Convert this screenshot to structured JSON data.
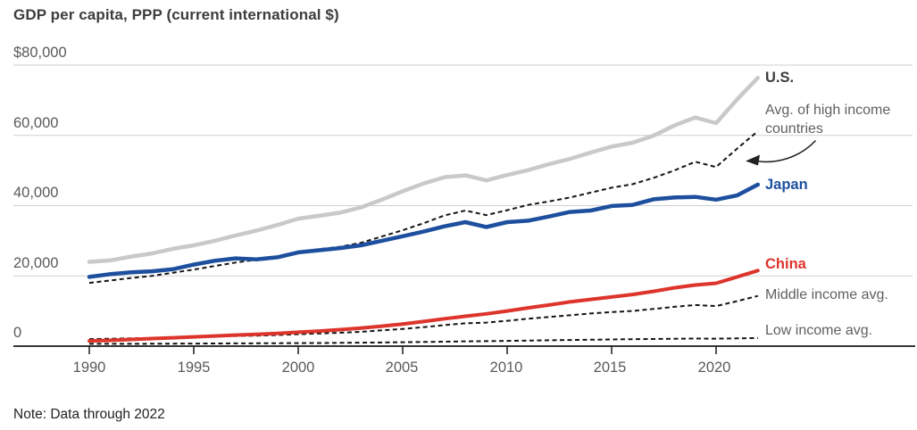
{
  "title": "GDP per capita, PPP (current international $)",
  "note": "Note: Data through 2022",
  "colors": {
    "us_line": "#c9c9c9",
    "japan_line": "#1d4f9e",
    "china_line": "#dd342c",
    "dashed_line": "#141414",
    "gridline": "#cfcfcf",
    "axis": "#1a1a1a",
    "tick_label": "#5a5a5a",
    "title_text": "#3d3d3d",
    "secondary_label": "#5f5f5f"
  },
  "y_axis": {
    "tick_labels": [
      "$80,000",
      "60,000",
      "40,000",
      "20,000",
      "0"
    ],
    "values": [
      80000,
      60000,
      40000,
      20000,
      0
    ]
  },
  "x_axis": {
    "tick_labels": [
      "1990",
      "1995",
      "2000",
      "2005",
      "2010",
      "2015",
      "2020"
    ],
    "values": [
      1990,
      1995,
      2000,
      2005,
      2010,
      2015,
      2020
    ]
  },
  "series_labels": {
    "us": "U.S.",
    "high_income": "Avg. of high income countries",
    "japan": "Japan",
    "china": "China",
    "middle_income": "Middle income avg.",
    "low_income": "Low income avg."
  },
  "chart_data": {
    "type": "line",
    "title": "GDP per capita, PPP (current international $)",
    "note": "Note: Data through 2022",
    "xlabel": "",
    "ylabel": "GDP per capita, PPP (current international $)",
    "xlim": [
      1990,
      2022
    ],
    "ylim": [
      0,
      80000
    ],
    "grid": "horizontal",
    "legend_position": "right-edge-direct-labels",
    "x": [
      1990,
      1991,
      1992,
      1993,
      1994,
      1995,
      1996,
      1997,
      1998,
      1999,
      2000,
      2001,
      2002,
      2003,
      2004,
      2005,
      2006,
      2007,
      2008,
      2009,
      2010,
      2011,
      2012,
      2013,
      2014,
      2015,
      2016,
      2017,
      2018,
      2019,
      2020,
      2021,
      2022
    ],
    "series": [
      {
        "name": "U.S.",
        "style": "solid",
        "color": "#c9c9c9",
        "stroke_width": 4.5,
        "values": [
          24000,
          24400,
          25500,
          26400,
          27700,
          28700,
          30000,
          31500,
          32900,
          34500,
          36300,
          37100,
          38000,
          39500,
          41700,
          44100,
          46300,
          48100,
          48600,
          47200,
          48700,
          50100,
          51800,
          53300,
          55100,
          56800,
          57900,
          59900,
          62800,
          65100,
          63500,
          70200,
          76400
        ]
      },
      {
        "name": "Avg. of high income countries",
        "style": "dashed",
        "color": "#141414",
        "stroke_width": 2,
        "values": [
          18000,
          18700,
          19400,
          20000,
          20900,
          21800,
          22800,
          23800,
          24600,
          25500,
          26800,
          27600,
          28300,
          29400,
          31200,
          33000,
          35000,
          37200,
          38600,
          37300,
          38700,
          40200,
          41200,
          42300,
          43700,
          45100,
          46100,
          47900,
          50000,
          52500,
          51000,
          56200,
          61200
        ]
      },
      {
        "name": "Japan",
        "style": "solid",
        "color": "#1d4f9e",
        "stroke_width": 4.5,
        "values": [
          19700,
          20500,
          21000,
          21300,
          21900,
          23200,
          24300,
          25000,
          24700,
          25300,
          26700,
          27300,
          27900,
          28700,
          30000,
          31300,
          32600,
          34100,
          35300,
          33900,
          35300,
          35700,
          36900,
          38200,
          38600,
          39900,
          40200,
          41800,
          42300,
          42500,
          41700,
          42900,
          46000
        ]
      },
      {
        "name": "China",
        "style": "solid",
        "color": "#dd342c",
        "stroke_width": 4,
        "values": [
          1500,
          1650,
          1900,
          2150,
          2400,
          2650,
          2900,
          3150,
          3350,
          3600,
          3950,
          4300,
          4700,
          5150,
          5700,
          6300,
          7000,
          7800,
          8500,
          9200,
          10000,
          10900,
          11700,
          12600,
          13300,
          14000,
          14700,
          15600,
          16600,
          17400,
          17900,
          19700,
          21500
        ]
      },
      {
        "name": "Middle income avg.",
        "style": "dashed",
        "color": "#141414",
        "stroke_width": 2,
        "values": [
          2000,
          2100,
          2200,
          2300,
          2450,
          2600,
          2750,
          2900,
          3000,
          3150,
          3400,
          3600,
          3800,
          4100,
          4500,
          4900,
          5400,
          6000,
          6500,
          6700,
          7200,
          7800,
          8300,
          8800,
          9300,
          9700,
          10000,
          10600,
          11200,
          11700,
          11400,
          12800,
          14300
        ]
      },
      {
        "name": "Low income avg.",
        "style": "dashed",
        "color": "#141414",
        "stroke_width": 2,
        "values": [
          650,
          660,
          670,
          680,
          700,
          730,
          760,
          790,
          820,
          840,
          870,
          900,
          940,
          990,
          1050,
          1120,
          1200,
          1280,
          1360,
          1420,
          1500,
          1580,
          1670,
          1760,
          1840,
          1910,
          1970,
          2030,
          2100,
          2160,
          2130,
          2210,
          2300
        ]
      }
    ]
  }
}
